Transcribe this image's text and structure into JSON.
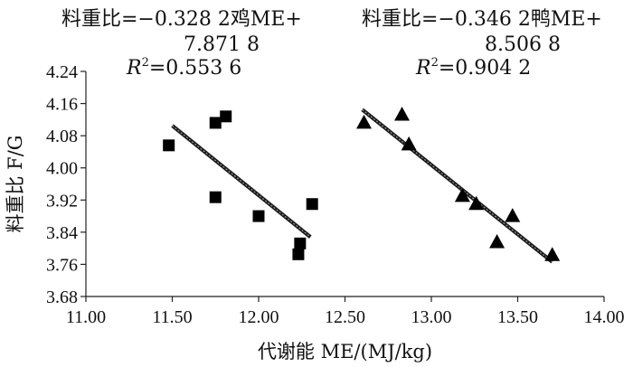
{
  "chart_data": {
    "type": "scatter",
    "xlabel": "代谢能 ME/(MJ/kg)",
    "ylabel": "料重比 F/G",
    "xlim": [
      11.0,
      14.0
    ],
    "ylim": [
      3.68,
      4.24
    ],
    "xticks": [
      "11.00",
      "11.50",
      "12.00",
      "12.50",
      "13.00",
      "13.50",
      "14.00"
    ],
    "yticks": [
      "3.68",
      "3.76",
      "3.84",
      "3.92",
      "4.00",
      "4.08",
      "4.16",
      "4.24"
    ],
    "grid": false,
    "series": [
      {
        "marker": "square",
        "points": [
          {
            "x": 11.48,
            "y": 4.056
          },
          {
            "x": 11.75,
            "y": 4.112
          },
          {
            "x": 11.81,
            "y": 4.128
          },
          {
            "x": 11.75,
            "y": 3.927
          },
          {
            "x": 12.0,
            "y": 3.88
          },
          {
            "x": 12.24,
            "y": 3.812
          },
          {
            "x": 12.23,
            "y": 3.785
          },
          {
            "x": 12.31,
            "y": 3.91
          }
        ],
        "trendline": {
          "x": [
            11.5,
            12.3
          ],
          "y": [
            4.105,
            3.828
          ]
        },
        "equation": {
          "line1": "料重比=−0.328 2鸡ME+",
          "line2": "7.871 8",
          "r2_value": "=0.553 6"
        }
      },
      {
        "marker": "triangle",
        "points": [
          {
            "x": 12.61,
            "y": 4.112
          },
          {
            "x": 12.83,
            "y": 4.132
          },
          {
            "x": 12.87,
            "y": 4.058
          },
          {
            "x": 13.18,
            "y": 3.93
          },
          {
            "x": 13.26,
            "y": 3.91
          },
          {
            "x": 13.38,
            "y": 3.815
          },
          {
            "x": 13.47,
            "y": 3.88
          },
          {
            "x": 13.7,
            "y": 3.783
          }
        ],
        "trendline": {
          "x": [
            12.6,
            13.7
          ],
          "y": [
            4.145,
            3.766
          ]
        },
        "equation": {
          "line1": "料重比=−0.346 2鸭ME+",
          "line2": "8.506 8",
          "r2_value": "=0.904 2"
        }
      }
    ]
  }
}
